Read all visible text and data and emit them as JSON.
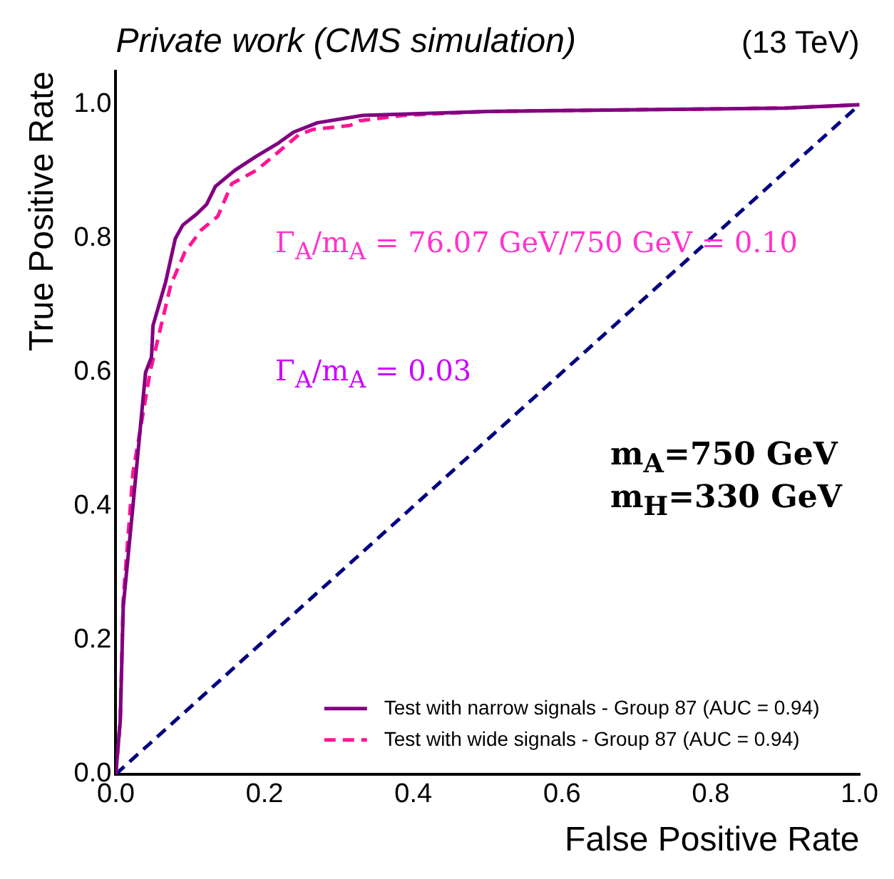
{
  "chart_data": {
    "type": "line",
    "title": "Private work (CMS simulation)",
    "subtitle": "(13 TeV)",
    "xlabel": "False Positive Rate",
    "ylabel": "True Positive Rate",
    "xlim": [
      0,
      1
    ],
    "ylim": [
      0,
      1.05
    ],
    "xticks": [
      {
        "value": 0,
        "label": "0.0"
      },
      {
        "value": 0.2,
        "label": "0.2"
      },
      {
        "value": 0.4,
        "label": "0.4"
      },
      {
        "value": 0.6,
        "label": "0.6"
      },
      {
        "value": 0.8,
        "label": "0.8"
      },
      {
        "value": 1,
        "label": "1.0"
      }
    ],
    "yticks": [
      {
        "value": 0,
        "label": "0.0"
      },
      {
        "value": 0.2,
        "label": "0.2"
      },
      {
        "value": 0.4,
        "label": "0.4"
      },
      {
        "value": 0.6,
        "label": "0.6"
      },
      {
        "value": 0.8,
        "label": "0.8"
      },
      {
        "value": 1,
        "label": "1.0"
      }
    ],
    "grid": false,
    "legend": "bottom right",
    "marker": "none",
    "series": [
      {
        "name": "Test with narrow signals - Group 87 (AUC = 0.94)",
        "color": "#800080",
        "line_style": "solid",
        "x": [
          0,
          0.006,
          0.01,
          0.023,
          0.04,
          0.048,
          0.05,
          0.067,
          0.08,
          0.09,
          0.109,
          0.122,
          0.134,
          0.16,
          0.189,
          0.219,
          0.239,
          0.271,
          0.332,
          0.5,
          0.9,
          1
        ],
        "values": [
          0,
          0.08,
          0.25,
          0.4,
          0.6,
          0.623,
          0.67,
          0.735,
          0.8,
          0.82,
          0.837,
          0.851,
          0.878,
          0.902,
          0.923,
          0.943,
          0.959,
          0.973,
          0.984,
          0.99,
          0.995,
          1
        ]
      },
      {
        "name": "Test with wide signals - Group 87 (AUC = 0.94)",
        "color": "#ff1493",
        "line_style": "dashed",
        "x": [
          0,
          0.006,
          0.01,
          0.023,
          0.046,
          0.074,
          0.093,
          0.115,
          0.137,
          0.156,
          0.189,
          0.214,
          0.246,
          0.265,
          0.315,
          0.328,
          0.386,
          0.5,
          0.9,
          1
        ],
        "values": [
          0,
          0.08,
          0.26,
          0.45,
          0.6,
          0.731,
          0.78,
          0.813,
          0.833,
          0.882,
          0.902,
          0.925,
          0.955,
          0.963,
          0.969,
          0.976,
          0.984,
          0.99,
          0.995,
          1
        ]
      },
      {
        "color": "#000080",
        "line_style": "dashed",
        "x": [
          0,
          1
        ],
        "values": [
          0,
          1
        ]
      }
    ],
    "annotations": [
      "Γ$_{A}$/m$_{A}$ = 76.07 GeV/750 GeV = 0.10",
      "Γ$_{A}$/m$_{A}$ = 0.03",
      "m$_{A}$=750 GeV",
      "m$_{H}$=330 GeV"
    ]
  }
}
